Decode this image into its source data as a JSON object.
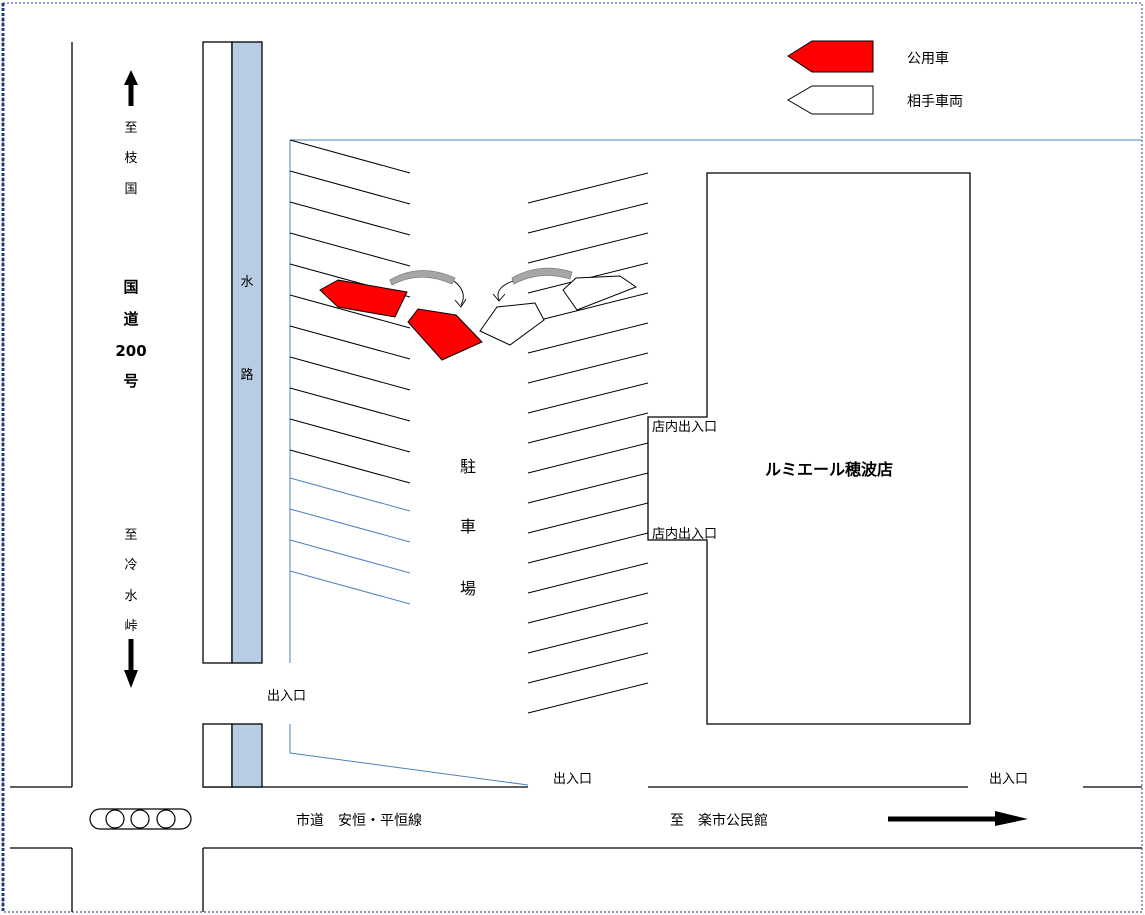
{
  "legend": {
    "official_car": "公用車",
    "other_vehicle": "相手車両"
  },
  "colors": {
    "official_car": "#ff0000",
    "waterway": "#b8cce4",
    "parking_line_blue": "#4f81bd",
    "turn_arrow": "#a6a6a6"
  },
  "labels": {
    "to_edakuni": [
      "至",
      "枝",
      "国"
    ],
    "national_route": [
      "国",
      "道",
      "200",
      "号"
    ],
    "to_reisui": [
      "至",
      "冷",
      "水",
      "峠"
    ],
    "waterway": [
      "水",
      "路"
    ],
    "parking": [
      "駐",
      "車",
      "場"
    ],
    "store_name": "ルミエール穂波店",
    "store_entrance_1": "店内出入口",
    "store_entrance_2": "店内出入口",
    "exit_left": "出入口",
    "exit_bottom_1": "出入口",
    "exit_bottom_2": "出入口",
    "city_road": "市道　安恒・平恒線",
    "to_community_center": "至　楽市公民館"
  },
  "icons": {
    "signal": "traffic-signal-icon",
    "north_arrow": "arrow-up-icon",
    "south_arrow": "arrow-down-icon",
    "east_arrow": "arrow-right-icon",
    "turn_arrow": "curved-arrow-icon"
  }
}
